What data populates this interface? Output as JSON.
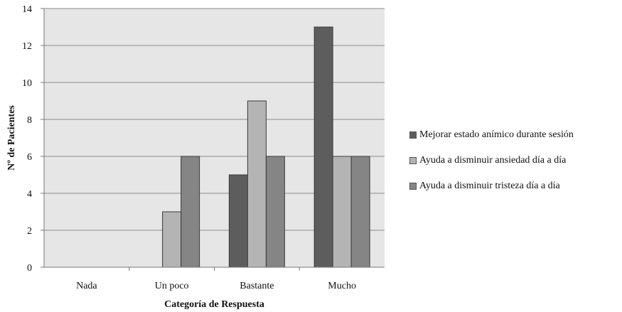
{
  "chart_data": {
    "type": "bar",
    "categories": [
      "Nada",
      "Un poco",
      "Bastante",
      "Mucho"
    ],
    "series": [
      {
        "name": "Mejorar estado anímico durante sesión",
        "values": [
          0,
          0,
          5,
          13
        ],
        "color": "#5d5d5d"
      },
      {
        "name": "Ayuda a disminuir ansiedad día a día",
        "values": [
          0,
          3,
          9,
          6
        ],
        "color": "#b4b4b4"
      },
      {
        "name": "Ayuda a disminuir tristeza día a día",
        "values": [
          0,
          6,
          6,
          6
        ],
        "color": "#858585"
      }
    ],
    "xlabel": "Categoría de Respuesta",
    "ylabel": "Nº de Pacientes",
    "ylim": [
      0,
      14
    ],
    "yticks": [
      0,
      2,
      4,
      6,
      8,
      10,
      12,
      14
    ],
    "grid": true,
    "legend_position": "right",
    "plot_background": "#e6e6e6"
  }
}
